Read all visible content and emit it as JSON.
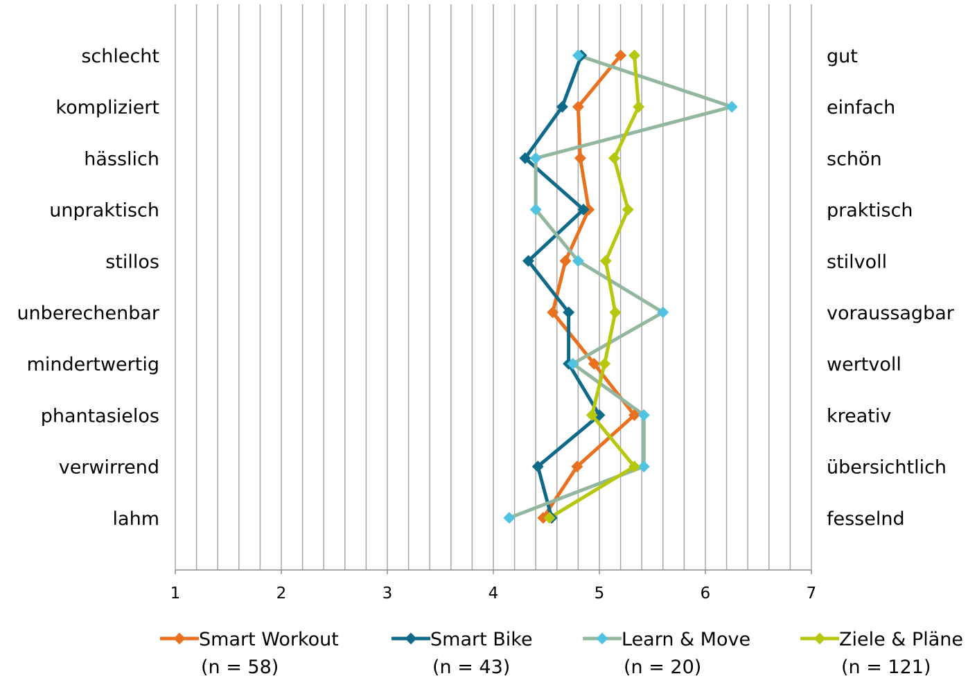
{
  "chart_data": {
    "type": "line",
    "orientation": "horizontal-profile",
    "xlim": [
      1,
      7
    ],
    "x_ticks": [
      "1",
      "2",
      "3",
      "4",
      "5",
      "6",
      "7"
    ],
    "minor_gridlines_per_unit": 5,
    "grid": true,
    "left_labels": [
      "schlecht",
      "kompliziert",
      "hässlich",
      "unpraktisch",
      "stillos",
      "unberechenbar",
      "mindertwertig",
      "phantasielos",
      "verwirrend",
      "lahm"
    ],
    "right_labels": [
      "gut",
      "einfach",
      "schön",
      "praktisch",
      "stilvoll",
      "voraussagbar",
      "wertvoll",
      "kreativ",
      "übersichtlich",
      "fesselnd"
    ],
    "legend_position": "bottom",
    "series": [
      {
        "name": "Smart Workout",
        "n_label": "(n = 58)",
        "color": "#E8701F",
        "marker_color": "#E8701F",
        "values": [
          5.2,
          4.8,
          4.82,
          4.9,
          4.68,
          4.56,
          4.95,
          5.33,
          4.79,
          4.47
        ]
      },
      {
        "name": "Smart Bike",
        "n_label": "(n = 43)",
        "color": "#0F6A8A",
        "marker_color": "#0F6A8A",
        "values": [
          4.83,
          4.65,
          4.3,
          4.85,
          4.33,
          4.71,
          4.71,
          5.0,
          4.42,
          4.55
        ]
      },
      {
        "name": "Learn & Move",
        "n_label": "(n = 20)",
        "color": "#93B79E",
        "marker_color": "#4FC3E0",
        "values": [
          4.8,
          6.25,
          4.4,
          4.4,
          4.8,
          5.6,
          4.75,
          5.42,
          5.42,
          4.15
        ]
      },
      {
        "name": "Ziele & Pläne",
        "n_label": "(n = 121)",
        "color": "#B5C80E",
        "marker_color": "#B5C80E",
        "values": [
          5.33,
          5.37,
          5.14,
          5.27,
          5.06,
          5.15,
          5.05,
          4.93,
          5.33,
          4.53
        ]
      }
    ]
  }
}
